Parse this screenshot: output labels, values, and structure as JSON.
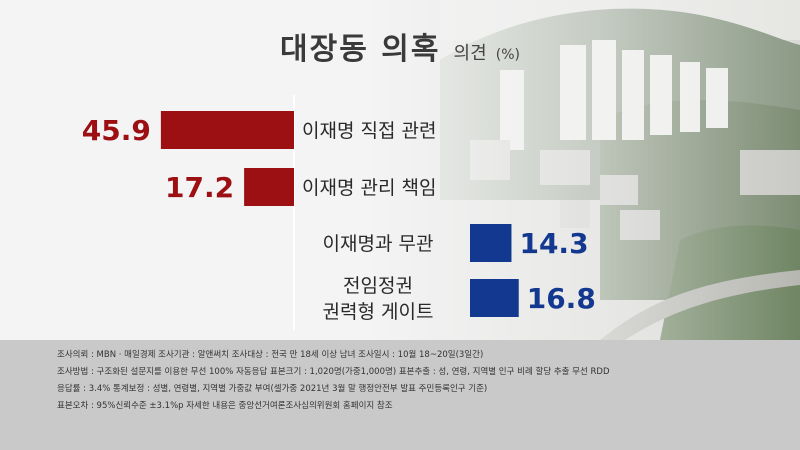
{
  "title": {
    "main": "대장동 의혹",
    "sub": "의견",
    "unit": "(%)"
  },
  "chart_data": {
    "type": "bar",
    "orientation": "horizontal-diverging",
    "categories": [
      "이재명 직접 관련",
      "이재명 관리 책임",
      "이재명과 무관",
      "전임정권 권력형 게이트"
    ],
    "category_lines": [
      [
        "이재명 직접 관련"
      ],
      [
        "이재명 관리 책임"
      ],
      [
        "이재명과 무관"
      ],
      [
        "전임정권",
        "권력형 게이트"
      ]
    ],
    "values": [
      45.9,
      17.2,
      14.3,
      16.8
    ],
    "value_labels": [
      "45.9",
      "17.2",
      "14.3",
      "16.8"
    ],
    "sides": [
      "left",
      "left",
      "right",
      "right"
    ],
    "colors": [
      "#9c0f12",
      "#9c0f12",
      "#13388f",
      "#13388f"
    ],
    "title": "대장동 의혹 의견 (%)",
    "xlabel": "",
    "ylabel": "",
    "grid": false,
    "legend": "none"
  },
  "footer": {
    "lines": [
      "조사의뢰 : MBN · 매일경제     조사기관 : 알앤써치     조사대상 : 전국 만 18세 이상 남녀     조사일시 : 10월 18~20일(3일간)",
      "조사방법 : 구조화된 설문지를 이용한 무선 100% 자동응답     표본크기 : 1,020명(가중1,000명)     표본추출 : 성, 연령, 지역별 인구 비례 할당 추출 무선 RDD",
      "응답률 : 3.4%     통계보정 : 성별, 연령별, 지역별 가중값 부여(셀가중 2021년 3월 말 행정안전부 발표 주민등록인구 기준)",
      "표본오차 : 95%신뢰수준 ±3.1%p     자세한 내용은 중앙선거여론조사심의위원회 홈페이지 참조"
    ]
  }
}
